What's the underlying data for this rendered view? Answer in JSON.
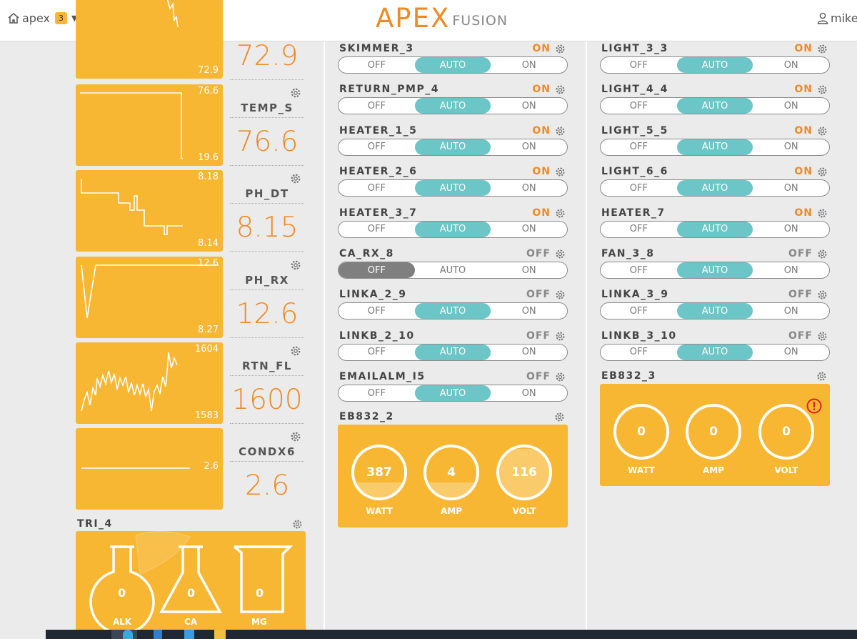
{
  "header": {
    "home_label": "apex",
    "badge_count": "3",
    "logo_apex": "APEX",
    "logo_fusion": "FUSION",
    "user_label": "mike"
  },
  "probes": [
    {
      "name": "",
      "value": "72.9",
      "graph_max": "",
      "graph_min": "72.9"
    },
    {
      "name": "TEMP_S",
      "value": "76.6",
      "graph_max": "76.6",
      "graph_min": "19.6"
    },
    {
      "name": "PH_DT",
      "value": "8.15",
      "graph_max": "8.18",
      "graph_min": "8.14"
    },
    {
      "name": "PH_RX",
      "value": "12.6",
      "graph_max": "12.6",
      "graph_min": "8.27"
    },
    {
      "name": "RTN_FL",
      "value": "1600",
      "graph_max": "1604",
      "graph_min": "1583"
    },
    {
      "name": "CONDX6",
      "value": "2.6",
      "graph_mid": "2.6"
    }
  ],
  "outlets_col1": [
    {
      "name": "SKIMMER_3",
      "state": "ON",
      "mode": "AUTO"
    },
    {
      "name": "RETURN_PMP_4",
      "state": "ON",
      "mode": "AUTO"
    },
    {
      "name": "HEATER_1_5",
      "state": "ON",
      "mode": "AUTO"
    },
    {
      "name": "HEATER_2_6",
      "state": "ON",
      "mode": "AUTO"
    },
    {
      "name": "HEATER_3_7",
      "state": "ON",
      "mode": "AUTO"
    },
    {
      "name": "CA_RX_8",
      "state": "OFF",
      "mode": "OFF"
    },
    {
      "name": "LINKA_2_9",
      "state": "OFF",
      "mode": "AUTO"
    },
    {
      "name": "LINKB_2_10",
      "state": "OFF",
      "mode": "AUTO"
    },
    {
      "name": "EMAILALM_I5",
      "state": "OFF",
      "mode": "AUTO"
    }
  ],
  "outlets_col2": [
    {
      "name": "LIGHT_3_3",
      "state": "ON",
      "mode": "AUTO"
    },
    {
      "name": "LIGHT_4_4",
      "state": "ON",
      "mode": "AUTO"
    },
    {
      "name": "LIGHT_5_5",
      "state": "ON",
      "mode": "AUTO"
    },
    {
      "name": "LIGHT_6_6",
      "state": "ON",
      "mode": "AUTO"
    },
    {
      "name": "HEATER_7",
      "state": "ON",
      "mode": "AUTO"
    },
    {
      "name": "FAN_3_8",
      "state": "OFF",
      "mode": "AUTO"
    },
    {
      "name": "LINKA_3_9",
      "state": "OFF",
      "mode": "AUTO"
    },
    {
      "name": "LINKB_3_10",
      "state": "OFF",
      "mode": "AUTO"
    }
  ],
  "toggle_labels": {
    "off": "OFF",
    "auto": "AUTO",
    "on": "ON"
  },
  "eb832_2": {
    "title": "EB832_2",
    "gauges": [
      {
        "value": "387",
        "label": "WATT",
        "fill": 0.3
      },
      {
        "value": "4",
        "label": "AMP",
        "fill": 0.3
      },
      {
        "value": "116",
        "label": "VOLT",
        "fill": 0.97
      }
    ]
  },
  "eb832_3": {
    "title": "EB832_3",
    "gauges": [
      {
        "value": "0",
        "label": "WATT",
        "fill": 0
      },
      {
        "value": "0",
        "label": "AMP",
        "fill": 0
      },
      {
        "value": "0",
        "label": "VOLT",
        "fill": 0
      }
    ],
    "alert": true
  },
  "trident": {
    "title": "TRI_4",
    "flasks": [
      {
        "value": "0",
        "label": "ALK"
      },
      {
        "value": "0",
        "label": "CA"
      },
      {
        "value": "0",
        "label": "MG"
      }
    ]
  },
  "colors": {
    "accent_orange": "#f08a24",
    "tile_yellow": "#f7b733",
    "auto_teal": "#6cc5c6"
  }
}
